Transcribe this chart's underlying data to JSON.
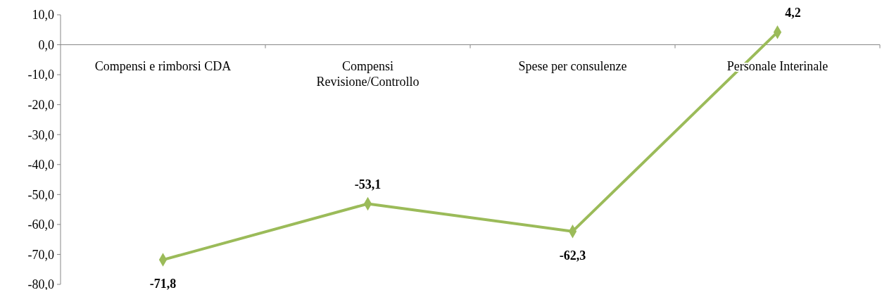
{
  "chart_data": {
    "type": "line",
    "categories": [
      "Compensi e rimborsi CDA",
      "Compensi Revisione/Controllo",
      "Spese per consulenze",
      "Personale Interinale"
    ],
    "series": [
      {
        "color": "#9bbb59",
        "values": [
          -71.8,
          -53.1,
          -62.3,
          4.2
        ],
        "value_labels": [
          "-71,8",
          "-53,1",
          "-62,3",
          "4,2"
        ]
      }
    ],
    "ylim": [
      -80,
      10
    ],
    "yticks": [
      {
        "value": 10,
        "label": "10,0"
      },
      {
        "value": 0,
        "label": "0,0"
      },
      {
        "value": -10,
        "label": "-10,0"
      },
      {
        "value": -20,
        "label": "-20,0"
      },
      {
        "value": -30,
        "label": "-30,0"
      },
      {
        "value": -40,
        "label": "-40,0"
      },
      {
        "value": -50,
        "label": "-50,0"
      },
      {
        "value": -60,
        "label": "-60,0"
      },
      {
        "value": -70,
        "label": "-70,0"
      },
      {
        "value": -80,
        "label": "-80,0"
      }
    ],
    "marker": "diamond",
    "line_style": "solid",
    "grid": false
  }
}
